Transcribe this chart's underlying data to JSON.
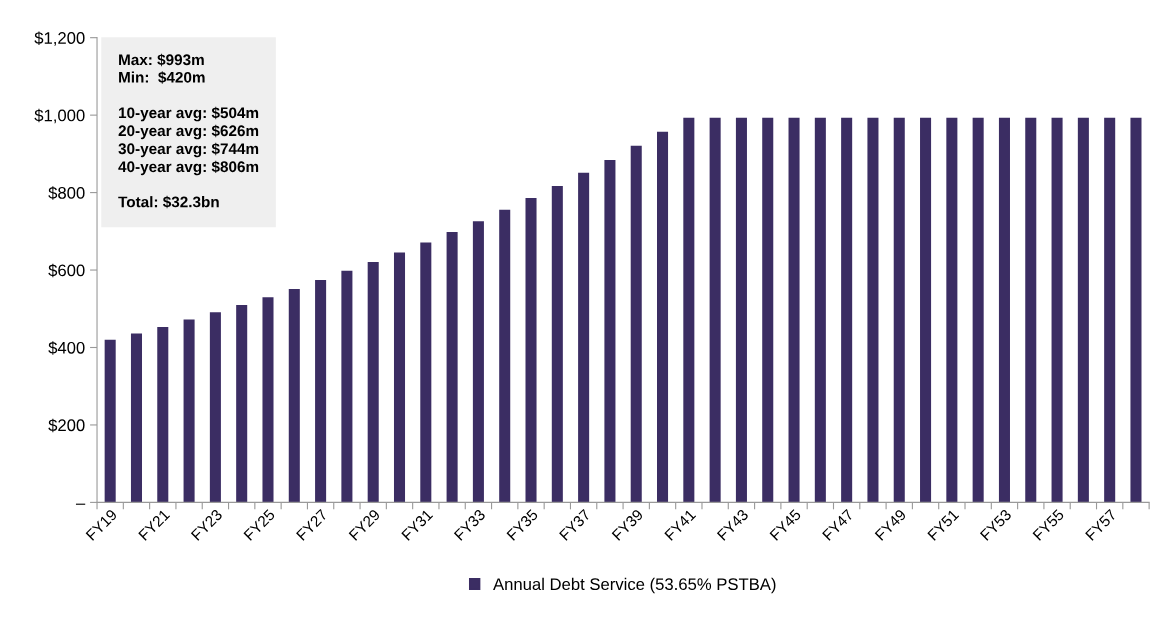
{
  "chart_data": {
    "type": "bar",
    "categories": [
      "FY19",
      null,
      "FY21",
      null,
      "FY23",
      null,
      "FY25",
      null,
      "FY27",
      null,
      "FY29",
      null,
      "FY31",
      null,
      "FY33",
      null,
      "FY35",
      null,
      "FY37",
      null,
      "FY39",
      null,
      "FY41",
      null,
      "FY43",
      null,
      "FY45",
      null,
      "FY47",
      null,
      "FY49",
      null,
      "FY51",
      null,
      "FY53",
      null,
      "FY55",
      null,
      "FY57",
      null
    ],
    "series": [
      {
        "name": "Annual Debt Service (53.65% PSTBA)",
        "color": "#3b2d63",
        "values": [
          420,
          436,
          453,
          472,
          491,
          510,
          530,
          551,
          574,
          598,
          621,
          645,
          671,
          698,
          726,
          756,
          786,
          817,
          851,
          884,
          921,
          957,
          993,
          993,
          993,
          993,
          993,
          993,
          993,
          993,
          993,
          993,
          993,
          993,
          993,
          993,
          993,
          993,
          993,
          993
        ]
      }
    ],
    "ylim": [
      0,
      1200
    ],
    "yticks": [
      {
        "value": 0,
        "label": "–"
      },
      {
        "value": 200,
        "label": "$200"
      },
      {
        "value": 400,
        "label": "$400"
      },
      {
        "value": 600,
        "label": "$600"
      },
      {
        "value": 800,
        "label": "$800"
      },
      {
        "value": 1000,
        "label": "$1,000"
      },
      {
        "value": 1200,
        "label": "$1,200"
      }
    ],
    "annotations": [
      "Max: $993m\nMin:  $420m\n\n10-year avg: $504m\n20-year avg: $626m\n30-year avg: $744m\n40-year avg: $806m\n\nTotal: $32.3bn"
    ],
    "legend": "bottom",
    "grid": false
  }
}
